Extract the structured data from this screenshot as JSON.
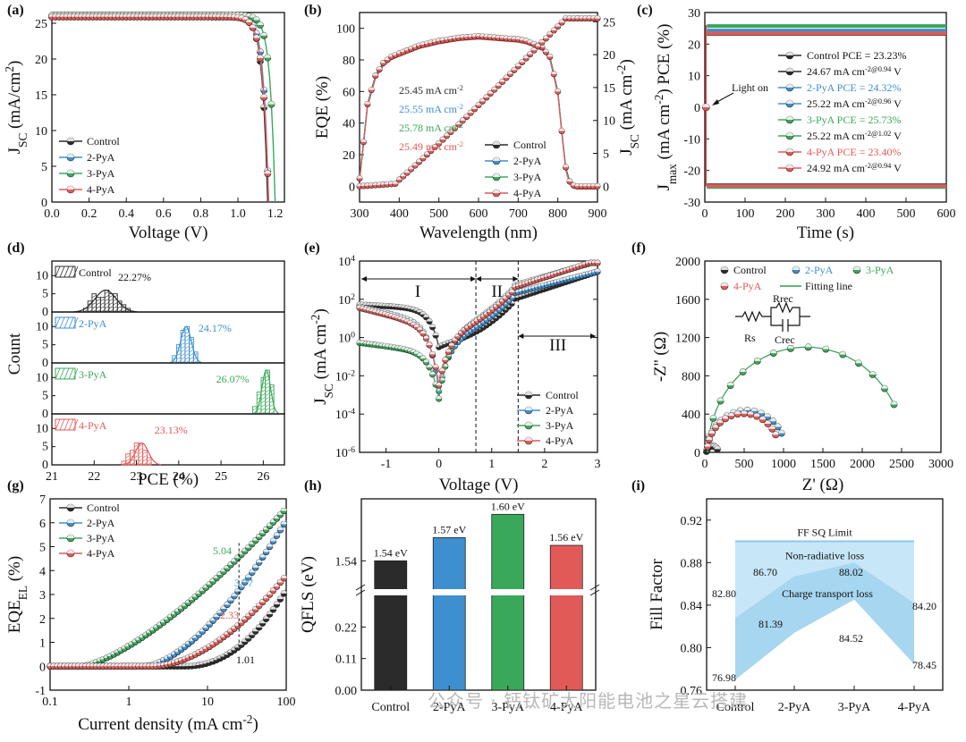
{
  "colors": {
    "Control": "#2b2b2b",
    "2-PyA": "#3e8fcf",
    "3-PyA": "#3aa85a",
    "4-PyA": "#e25a57",
    "band_light": "#c7e7f8",
    "band_mid": "#a6d6f0"
  },
  "series_names": [
    "Control",
    "2-PyA",
    "3-PyA",
    "4-PyA"
  ],
  "chart_data": [
    {
      "id": "a",
      "panel_label": "(a)",
      "type": "line",
      "xlabel": "Voltage (V)",
      "ylabel": "J_SC (mA/cm^2)",
      "xlim": [
        0,
        1.25
      ],
      "ylim": [
        0,
        26.5
      ],
      "xticks": [
        0.0,
        0.2,
        0.4,
        0.6,
        0.8,
        1.0,
        1.2
      ],
      "xtick_labels": [
        "0.0",
        "0.2",
        "0.4",
        "0.6",
        "0.8",
        "1.0",
        "1.2"
      ],
      "yticks": [
        0,
        5,
        10,
        15,
        20,
        25
      ],
      "ytick_labels": [
        "0",
        "5",
        "10",
        "15",
        "20",
        "25"
      ],
      "series": [
        {
          "name": "Control",
          "jsc": 25.9,
          "voc": 1.16,
          "n": 0.028
        },
        {
          "name": "2-PyA",
          "jsc": 25.9,
          "voc": 1.165,
          "n": 0.027
        },
        {
          "name": "3-PyA",
          "jsc": 26.1,
          "voc": 1.2,
          "n": 0.027
        },
        {
          "name": "4-PyA",
          "jsc": 25.9,
          "voc": 1.165,
          "n": 0.03
        }
      ]
    },
    {
      "id": "b",
      "panel_label": "(b)",
      "type": "line",
      "xlabel": "Wavelength (nm)",
      "ylabel": "EQE (%)",
      "y2label": "J_SC (mA cm^-2)",
      "xlim": [
        300,
        900
      ],
      "ylim": [
        -10,
        110
      ],
      "y2lim": [
        -2.4,
        26.4
      ],
      "xticks": [
        300,
        400,
        500,
        600,
        700,
        800,
        900
      ],
      "xtick_labels": [
        "300",
        "400",
        "500",
        "600",
        "700",
        "800",
        "900"
      ],
      "yticks": [
        0,
        20,
        40,
        60,
        80,
        100
      ],
      "ytick_labels": [
        "0",
        "20",
        "40",
        "60",
        "80",
        "100"
      ],
      "y2ticks": [
        0,
        5,
        10,
        15,
        20,
        25
      ],
      "y2tick_labels": [
        "0",
        "5",
        "10",
        "15",
        "20",
        "25"
      ],
      "eqe_x": [
        300,
        310,
        320,
        340,
        360,
        380,
        400,
        450,
        500,
        550,
        600,
        650,
        700,
        720,
        740,
        760,
        780,
        800,
        810,
        820,
        830,
        840,
        850,
        870,
        900
      ],
      "eqe_y": [
        5,
        28,
        52,
        70,
        78,
        82,
        84,
        89,
        92,
        94,
        95,
        94,
        93,
        92,
        90,
        88,
        82,
        60,
        35,
        12,
        3,
        0.5,
        0,
        0,
        0
      ],
      "integrated": [
        "25.45 mA cm^-2",
        "25.55 mA cm^-2",
        "25.78 mA cm^-2",
        "25.49 mA cm^-2"
      ],
      "series": [
        "Control",
        "2-PyA",
        "3-PyA",
        "4-PyA"
      ]
    },
    {
      "id": "c",
      "panel_label": "(c)",
      "type": "line",
      "xlabel": "Time (s)",
      "ylabel": "J_max (mA cm^-2) PCE (%)",
      "xlim": [
        0,
        600
      ],
      "ylim": [
        -30,
        30
      ],
      "xticks": [
        0,
        100,
        200,
        300,
        400,
        500,
        600
      ],
      "xtick_labels": [
        "0",
        "100",
        "200",
        "300",
        "400",
        "500",
        "600"
      ],
      "yticks": [
        -30,
        -20,
        -10,
        0,
        10,
        20,
        30
      ],
      "ytick_labels": [
        "-30",
        "-20",
        "-10",
        "0",
        "10",
        "20",
        "30"
      ],
      "annotation": "Light on",
      "series": [
        {
          "name": "Control",
          "pce": 23.23,
          "jmax": -24.67,
          "label_pce": "Control  PCE = 23.23%",
          "label_j": "24.67 mA cm^-2@0.94 V"
        },
        {
          "name": "2-PyA",
          "pce": 24.32,
          "jmax": -25.22,
          "label_pce": "2-PyA   PCE = 24.32%",
          "label_j": "25.22 mA cm^-2@0.96 V"
        },
        {
          "name": "3-PyA",
          "pce": 25.73,
          "jmax": -25.22,
          "label_pce": "3-PyA   PCE = 25.73%",
          "label_j": "25.22 mA cm^-2@1.02 V"
        },
        {
          "name": "4-PyA",
          "pce": 23.4,
          "jmax": -24.92,
          "label_pce": "4-PyA   PCE = 23.40%",
          "label_j": "24.92 mA cm^-2@0.94 V"
        }
      ]
    },
    {
      "id": "d",
      "panel_label": "(d)",
      "type": "bar",
      "xlabel": "PCE (%)",
      "ylabel": "Count",
      "xlim": [
        21,
        26.5
      ],
      "xticks": [
        21,
        22,
        23,
        24,
        25,
        26
      ],
      "xtick_labels": [
        "21",
        "22",
        "23",
        "24",
        "25",
        "26"
      ],
      "sub_yticks": [
        0,
        5,
        10
      ],
      "sub_ytick_labels": [
        "0",
        "5",
        "10"
      ],
      "sub": [
        {
          "name": "Control",
          "mean": "22.27%",
          "bins": [
            21.8,
            21.9,
            22.0,
            22.1,
            22.2,
            22.3,
            22.4,
            22.5,
            22.6,
            22.7,
            22.8
          ],
          "counts": [
            1,
            3,
            5,
            4,
            4,
            6,
            5,
            5,
            3,
            2,
            1
          ]
        },
        {
          "name": "2-PyA",
          "mean": "24.17%",
          "bins": [
            23.9,
            24.0,
            24.1,
            24.2,
            24.3,
            24.4
          ],
          "counts": [
            2,
            5,
            9,
            10,
            7,
            3
          ]
        },
        {
          "name": "3-PyA",
          "mean": "26.07%",
          "bins": [
            25.8,
            25.9,
            26.0,
            26.1,
            26.2
          ],
          "counts": [
            2,
            6,
            10,
            12,
            8
          ]
        },
        {
          "name": "4-PyA",
          "mean": "23.13%",
          "bins": [
            22.7,
            22.8,
            22.9,
            23.0,
            23.1,
            23.2,
            23.3
          ],
          "counts": [
            1,
            3,
            4,
            6,
            6,
            4,
            2
          ]
        }
      ]
    },
    {
      "id": "e",
      "panel_label": "(e)",
      "type": "line",
      "xlabel": "Voltage (V)",
      "ylabel": "J_SC (mA cm^-2)",
      "xlim": [
        -1.5,
        3
      ],
      "ylim_log10": [
        -6,
        4
      ],
      "xticks": [
        -1,
        0,
        1,
        2,
        3
      ],
      "xtick_labels": [
        "-1",
        "0",
        "1",
        "2",
        "3"
      ],
      "yticks_exp": [
        -6,
        -4,
        -2,
        0,
        2,
        4
      ],
      "ytick_labels": [
        "10^-6",
        "10^-4",
        "10^-2",
        "10^0",
        "10^2",
        "10^4"
      ],
      "regions": [
        "I",
        "II",
        "III"
      ],
      "dividers": [
        0.7,
        1.5
      ],
      "series": [
        {
          "name": "Control",
          "a": 1.5,
          "b": 0.15,
          "min": -0.5,
          "c": -0.2,
          "d": 1.0
        },
        {
          "name": "2-PyA",
          "a": 0.7,
          "b": 0.6,
          "min": -2.8,
          "c": 0.1,
          "d": 0.8
        },
        {
          "name": "3-PyA",
          "a": -0.8,
          "b": 0.35,
          "min": -3.2,
          "c": 0.5,
          "d": 0.9
        },
        {
          "name": "4-PyA",
          "a": 0.5,
          "b": 0.7,
          "min": -2.5,
          "c": 0.4,
          "d": 1.0
        }
      ]
    },
    {
      "id": "f",
      "panel_label": "(f)",
      "type": "scatter",
      "xlabel": "Z' (Ω)",
      "ylabel": "-Z'' (Ω)",
      "xlim": [
        0,
        3000
      ],
      "ylim": [
        0,
        2000
      ],
      "xticks": [
        0,
        500,
        1000,
        1500,
        2000,
        2500,
        3000
      ],
      "xtick_labels": [
        "0",
        "500",
        "1000",
        "1500",
        "2000",
        "2500",
        "3000"
      ],
      "yticks": [
        0,
        400,
        800,
        1200,
        1600,
        2000
      ],
      "ytick_labels": [
        "0",
        "400",
        "800",
        "1200",
        "1600",
        "2000"
      ],
      "legend": [
        "Control",
        "2-PyA",
        "3-PyA",
        "4-PyA",
        "Fitting line"
      ],
      "circuit": [
        "Rs",
        "Rrec",
        "Crec"
      ],
      "series": [
        {
          "name": "Control",
          "r": 75,
          "rs": 20
        },
        {
          "name": "3-PyA",
          "r": 1250,
          "rs": 40
        },
        {
          "name": "2-PyA",
          "r": 500,
          "rs": 30
        },
        {
          "name": "4-PyA",
          "r": 460,
          "rs": 30
        }
      ]
    },
    {
      "id": "g",
      "panel_label": "(g)",
      "type": "line",
      "xlabel": "Current density (mA cm^-2)",
      "ylabel": "EQE_EL (%)",
      "xlim_log10": [
        -1,
        2
      ],
      "ylim": [
        -1,
        7
      ],
      "xticks_exp": [
        -1,
        0,
        1,
        2
      ],
      "xtick_labels": [
        "0.1",
        "1",
        "10",
        "100"
      ],
      "yticks": [
        -1,
        0,
        1,
        2,
        3,
        4,
        5,
        6,
        7
      ],
      "ytick_labels": [
        "-1",
        "0",
        "1",
        "2",
        "3",
        "4",
        "5",
        "6",
        "7"
      ],
      "values_at_25": [
        "1.01",
        "2.33",
        "3.77",
        "5.04"
      ],
      "series": [
        {
          "name": "Control",
          "start": 0.7,
          "end": 3.2,
          "p": 2.2
        },
        {
          "name": "2-PyA",
          "start": 0.2,
          "end": 6.1,
          "p": 1.6
        },
        {
          "name": "3-PyA",
          "start": -0.6,
          "end": 6.6,
          "p": 1.4
        },
        {
          "name": "4-PyA",
          "start": 0.3,
          "end": 3.8,
          "p": 1.8
        }
      ]
    },
    {
      "id": "h",
      "panel_label": "(h)",
      "type": "bar",
      "xlabel": "",
      "ylabel": "QFLS (eV)",
      "categories": [
        "Control",
        "2-PyA",
        "3-PyA",
        "4-PyA"
      ],
      "values": [
        1.54,
        1.57,
        1.6,
        1.56
      ],
      "value_labels": [
        "1.54 eV",
        "1.57 eV",
        "1.60 eV",
        "1.56 eV"
      ],
      "yticks": [
        "0.00",
        "0.11",
        "0.22",
        "1.54"
      ]
    },
    {
      "id": "i",
      "panel_label": "(i)",
      "type": "area",
      "xlabel": "",
      "ylabel": "Fill Factor",
      "categories": [
        "Control",
        "2-PyA",
        "3-PyA",
        "4-PyA"
      ],
      "ylim": [
        0.76,
        0.94
      ],
      "yticks": [
        0.76,
        0.8,
        0.84,
        0.88,
        0.92
      ],
      "ytick_labels": [
        "0.76",
        "0.80",
        "0.84",
        "0.88",
        "0.92"
      ],
      "sq_limit": 0.9,
      "sq_label": "FF SQ Limit",
      "nonrad_label": "Non-radiative loss",
      "transport_label": "Charge transport loss",
      "sq_values": [
        82.8,
        86.7,
        88.02,
        84.2
      ],
      "measured": [
        76.98,
        81.39,
        84.52,
        78.45
      ],
      "sq_labels": [
        "82.80",
        "86.70",
        "88.02",
        "84.20"
      ],
      "measured_labels": [
        "76.98",
        "81.39",
        "84.52",
        "78.45"
      ]
    }
  ],
  "watermark": "公众号 · 钙钛矿太阳能电池之星云搭建"
}
